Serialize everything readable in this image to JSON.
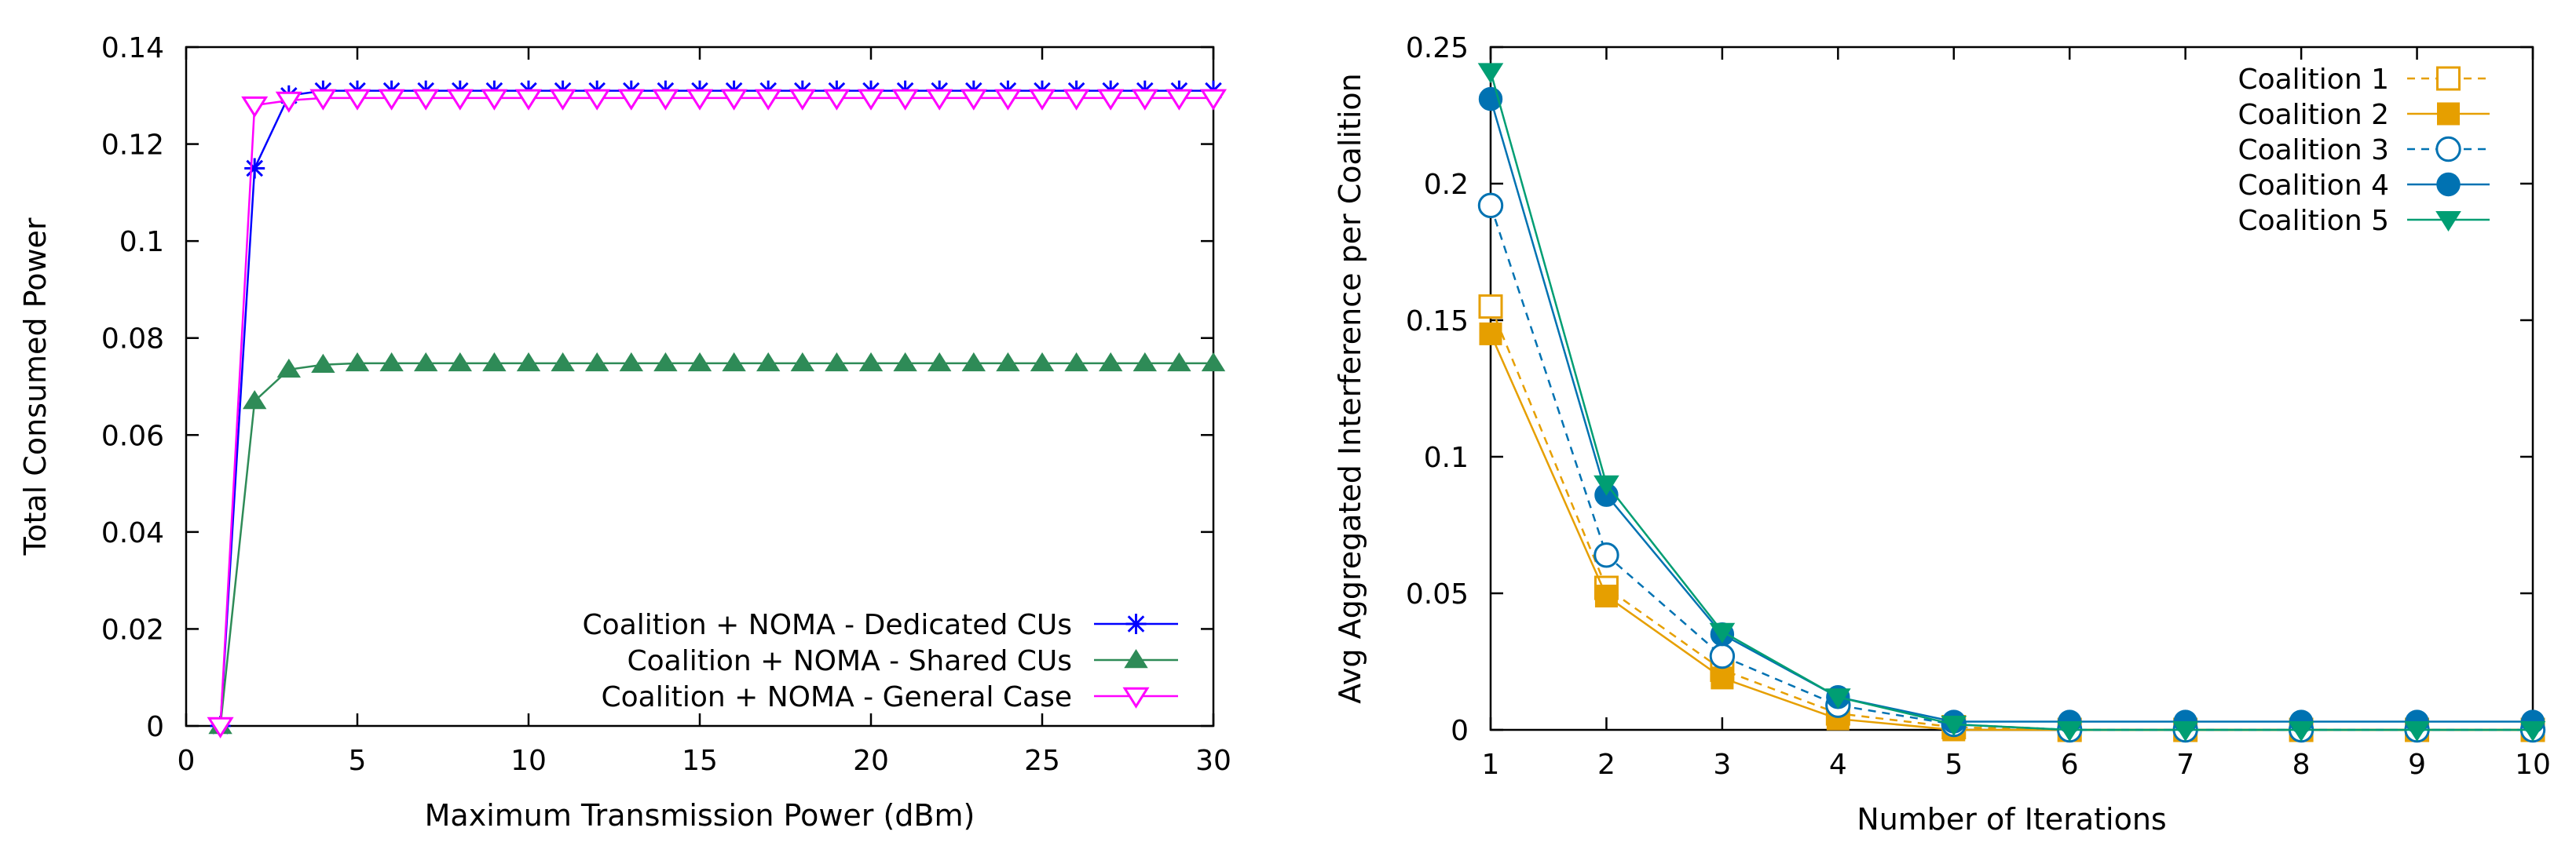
{
  "chart_data": [
    {
      "type": "line",
      "title": "",
      "xlabel": "Maximum Transmission Power (dBm)",
      "ylabel": "Total Consumed Power",
      "xlim": [
        0,
        30
      ],
      "ylim": [
        0,
        0.14
      ],
      "xticks": [
        0,
        5,
        10,
        15,
        20,
        25,
        30
      ],
      "yticks": [
        0,
        0.02,
        0.04,
        0.06,
        0.08,
        0.1,
        0.12,
        0.14
      ],
      "xtick_labels": [
        "0",
        "5",
        "10",
        "15",
        "20",
        "25",
        "30"
      ],
      "ytick_labels": [
        "0",
        "0.02",
        "0.04",
        "0.06",
        "0.08",
        "0.1",
        "0.12",
        "0.14"
      ],
      "legend_position": "bottom-right",
      "x": [
        1,
        2,
        3,
        4,
        5,
        6,
        7,
        8,
        9,
        10,
        11,
        12,
        13,
        14,
        15,
        16,
        17,
        18,
        19,
        20,
        21,
        22,
        23,
        24,
        25,
        26,
        27,
        28,
        29,
        30
      ],
      "series": [
        {
          "name": "Coalition + NOMA - Dedicated CUs",
          "color": "#0000ff",
          "marker": "star",
          "values": [
            0,
            0.115,
            0.13,
            0.131,
            0.131,
            0.131,
            0.131,
            0.131,
            0.131,
            0.131,
            0.131,
            0.131,
            0.131,
            0.131,
            0.131,
            0.131,
            0.131,
            0.131,
            0.131,
            0.131,
            0.131,
            0.131,
            0.131,
            0.131,
            0.131,
            0.131,
            0.131,
            0.131,
            0.131,
            0.131
          ]
        },
        {
          "name": "Coalition + NOMA - Shared CUs",
          "color": "#2e8b57",
          "marker": "triangle-up",
          "values": [
            0,
            0.067,
            0.0735,
            0.0745,
            0.0748,
            0.0748,
            0.0748,
            0.0748,
            0.0748,
            0.0748,
            0.0748,
            0.0748,
            0.0748,
            0.0748,
            0.0748,
            0.0748,
            0.0748,
            0.0748,
            0.0748,
            0.0748,
            0.0748,
            0.0748,
            0.0748,
            0.0748,
            0.0748,
            0.0748,
            0.0748,
            0.0748,
            0.0748,
            0.0748
          ]
        },
        {
          "name": "Coalition + NOMA - General Case",
          "color": "#ff00ff",
          "marker": "triangle-down-open",
          "values": [
            0,
            0.128,
            0.129,
            0.1295,
            0.1295,
            0.1295,
            0.1295,
            0.1295,
            0.1295,
            0.1295,
            0.1295,
            0.1295,
            0.1295,
            0.1295,
            0.1295,
            0.1295,
            0.1295,
            0.1295,
            0.1295,
            0.1295,
            0.1295,
            0.1295,
            0.1295,
            0.1295,
            0.1295,
            0.1295,
            0.1295,
            0.1295,
            0.1295,
            0.1295
          ]
        }
      ]
    },
    {
      "type": "line",
      "title": "",
      "xlabel": "Number of Iterations",
      "ylabel": "Avg Aggregated Interference per Coalition",
      "xlim": [
        1,
        10
      ],
      "ylim": [
        0,
        0.25
      ],
      "xticks": [
        1,
        2,
        3,
        4,
        5,
        6,
        7,
        8,
        9,
        10
      ],
      "yticks": [
        0,
        0.05,
        0.1,
        0.15,
        0.2,
        0.25
      ],
      "xtick_labels": [
        "1",
        "2",
        "3",
        "4",
        "5",
        "6",
        "7",
        "8",
        "9",
        "10"
      ],
      "ytick_labels": [
        "0",
        "0.05",
        "0.1",
        "0.15",
        "0.2",
        "0.25"
      ],
      "legend_position": "top-right",
      "x": [
        1,
        2,
        3,
        4,
        5,
        6,
        7,
        8,
        9,
        10
      ],
      "series": [
        {
          "name": "Coalition 1",
          "color": "#e69f00",
          "marker": "square-open",
          "dash": true,
          "values": [
            0.155,
            0.052,
            0.022,
            0.006,
            0.001,
            0.0,
            0.0,
            0.0,
            0.0,
            0.0
          ]
        },
        {
          "name": "Coalition 2",
          "color": "#e69f00",
          "marker": "square",
          "dash": false,
          "values": [
            0.145,
            0.049,
            0.019,
            0.004,
            0.0,
            0.0,
            0.0,
            0.0,
            0.0,
            0.0
          ]
        },
        {
          "name": "Coalition 3",
          "color": "#0072b2",
          "marker": "circle-open",
          "dash": true,
          "values": [
            0.192,
            0.064,
            0.027,
            0.009,
            0.002,
            0.0,
            0.0,
            0.0,
            0.0,
            0.0
          ]
        },
        {
          "name": "Coalition 4",
          "color": "#0072b2",
          "marker": "circle",
          "dash": false,
          "values": [
            0.231,
            0.086,
            0.035,
            0.012,
            0.003,
            0.003,
            0.003,
            0.003,
            0.003,
            0.003
          ]
        },
        {
          "name": "Coalition 5",
          "color": "#009e73",
          "marker": "triangle-down",
          "dash": false,
          "values": [
            0.241,
            0.09,
            0.036,
            0.012,
            0.002,
            0.0,
            0.0,
            0.0,
            0.0,
            0.0
          ]
        }
      ]
    }
  ]
}
